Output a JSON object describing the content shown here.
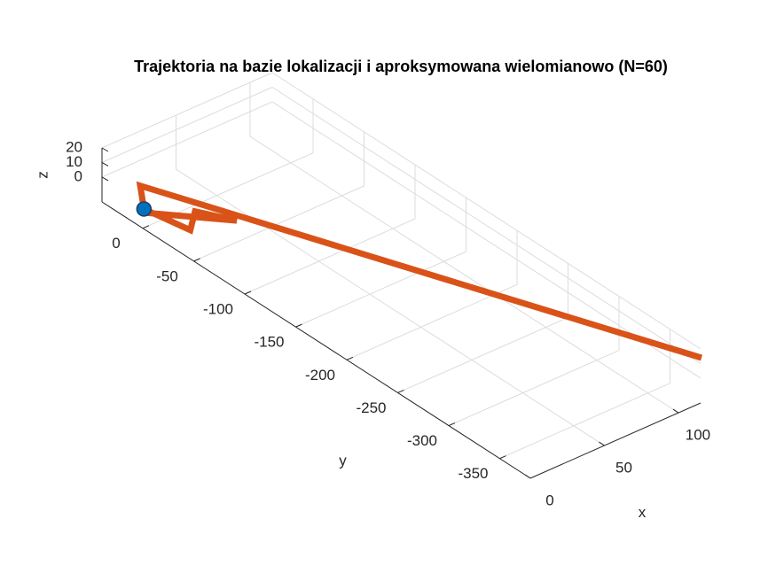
{
  "chart_data": {
    "type": "line3d",
    "title": "Trajektoria na bazie lokalizacji i aproksymowana wielomianowo (N=60)",
    "xlabel": "x",
    "ylabel": "y",
    "zlabel": "z",
    "xlim": [
      0,
      115
    ],
    "ylim": [
      -380,
      40
    ],
    "zlim": [
      -17,
      20
    ],
    "xticks": [
      0,
      50,
      100
    ],
    "yticks": [
      -350,
      -300,
      -250,
      -200,
      -150,
      -100,
      -50,
      0
    ],
    "zticks": [
      0,
      10,
      20
    ],
    "grid": true,
    "series": [
      {
        "color": "#d95319",
        "x": [
          -3,
          2.5,
          16,
          27,
          -5,
          10,
          128
        ],
        "y": [
          -5.5,
          -43,
          -28,
          -53,
          -9,
          17,
          -362
        ],
        "z": [
          0,
          0,
          0,
          0,
          0,
          0,
          0
        ]
      },
      {
        "color": "#0072bd",
        "marker": "circle",
        "x": [
          -3
        ],
        "y": [
          -5.5
        ],
        "z": [
          0
        ]
      }
    ]
  }
}
